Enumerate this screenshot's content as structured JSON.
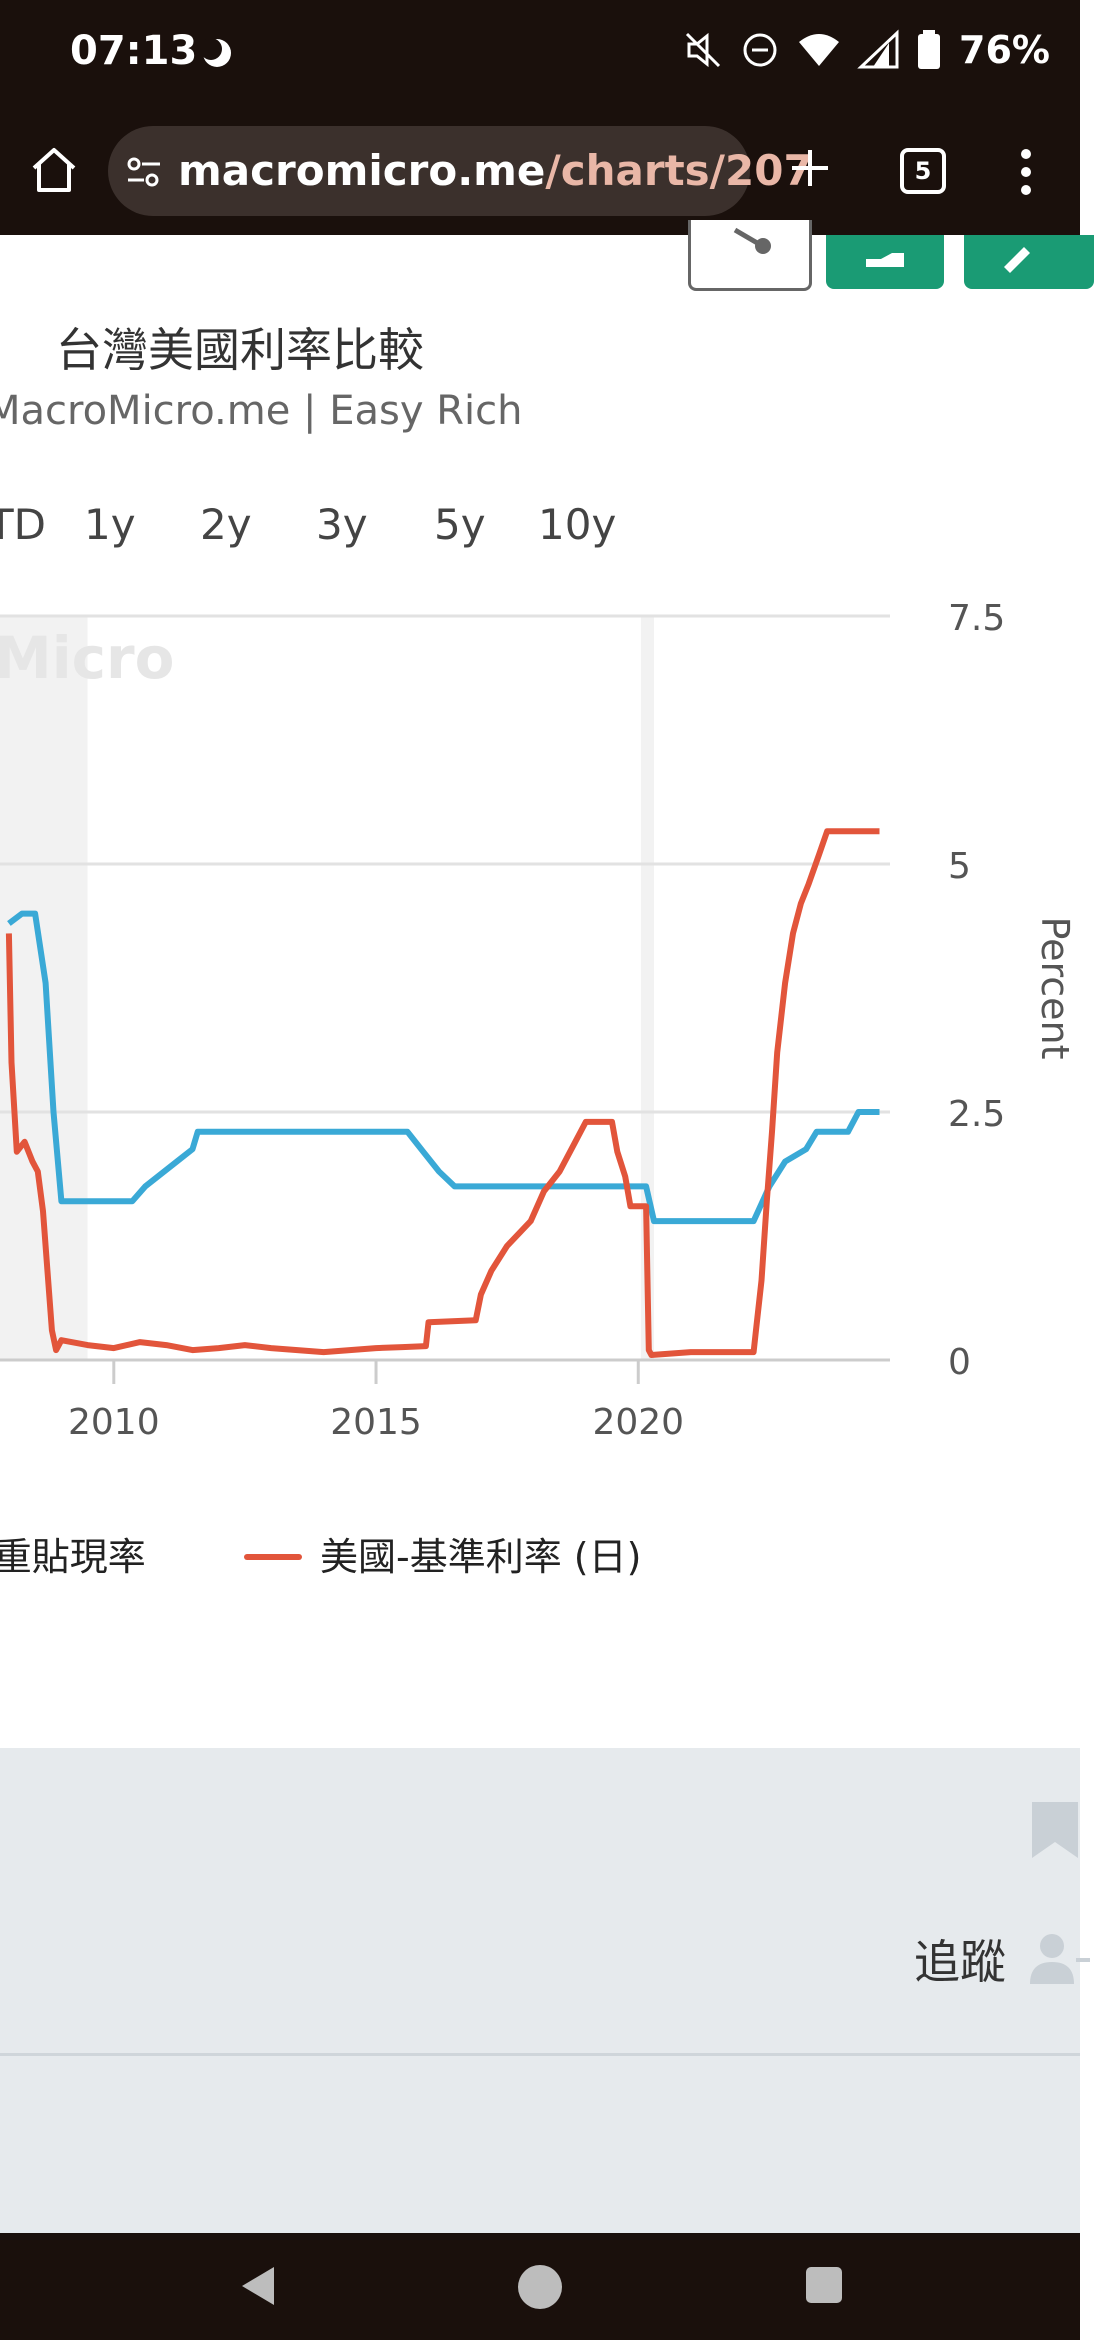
{
  "status_bar": {
    "time": "07:13",
    "battery": "76%",
    "icons": [
      "moon-icon",
      "mute-icon",
      "dnd-icon",
      "wifi-icon",
      "signal-icon",
      "battery-icon"
    ]
  },
  "browser": {
    "url_host": "macromicro.me",
    "url_path": "/charts/207",
    "tab_count": "5",
    "icons": [
      "home-icon",
      "tune-icon",
      "plus-icon",
      "tabs-icon",
      "menu-icon"
    ]
  },
  "toolbar": {
    "icons": [
      "share-icon",
      "download-icon",
      "edit-icon"
    ],
    "accent": "#1a9b74"
  },
  "chart_header": {
    "title": "台灣美國利率比較",
    "source": "MacroMicro.me | Easy Rich"
  },
  "range_buttons": [
    "TD",
    "1y",
    "2y",
    "3y",
    "5y",
    "10y"
  ],
  "chart_data": {
    "type": "line",
    "x_ticks": [
      "2010",
      "2015",
      "2020"
    ],
    "y_ticks": [
      "0",
      "2.5",
      "5",
      "7.5"
    ],
    "ylabel": "Percent",
    "ylim": [
      0,
      7.5
    ],
    "watermark": "Micro",
    "series": [
      {
        "name": "重貼現率",
        "color": "#3aa9d6",
        "points": [
          [
            2008.0,
            4.4
          ],
          [
            2008.25,
            4.5
          ],
          [
            2008.5,
            4.5
          ],
          [
            2008.7,
            3.8
          ],
          [
            2008.85,
            2.5
          ],
          [
            2009.0,
            1.6
          ],
          [
            2009.5,
            1.6
          ],
          [
            2010.35,
            1.6
          ],
          [
            2010.6,
            1.75
          ],
          [
            2010.9,
            1.875
          ],
          [
            2011.2,
            2.0
          ],
          [
            2011.5,
            2.125
          ],
          [
            2011.6,
            2.3
          ],
          [
            2015.6,
            2.3
          ],
          [
            2015.9,
            2.1
          ],
          [
            2016.2,
            1.9
          ],
          [
            2016.5,
            1.75
          ],
          [
            2020.15,
            1.75
          ],
          [
            2020.3,
            1.4
          ],
          [
            2022.2,
            1.4
          ],
          [
            2022.5,
            1.75
          ],
          [
            2022.8,
            2.0
          ],
          [
            2023.2,
            2.125
          ],
          [
            2023.4,
            2.3
          ],
          [
            2024.0,
            2.3
          ],
          [
            2024.2,
            2.5
          ],
          [
            2024.6,
            2.5
          ]
        ]
      },
      {
        "name": "美國-基準利率 (日)",
        "color": "#e2553b",
        "points": [
          [
            2008.0,
            4.3
          ],
          [
            2008.05,
            3.0
          ],
          [
            2008.15,
            2.1
          ],
          [
            2008.3,
            2.2
          ],
          [
            2008.45,
            2.0
          ],
          [
            2008.55,
            1.9
          ],
          [
            2008.65,
            1.5
          ],
          [
            2008.72,
            1.0
          ],
          [
            2008.82,
            0.3
          ],
          [
            2008.9,
            0.1
          ],
          [
            2009.0,
            0.2
          ],
          [
            2009.5,
            0.15
          ],
          [
            2010.0,
            0.12
          ],
          [
            2010.5,
            0.18
          ],
          [
            2011.0,
            0.15
          ],
          [
            2011.5,
            0.1
          ],
          [
            2012.0,
            0.12
          ],
          [
            2012.5,
            0.15
          ],
          [
            2013.0,
            0.12
          ],
          [
            2013.5,
            0.1
          ],
          [
            2014.0,
            0.08
          ],
          [
            2014.5,
            0.1
          ],
          [
            2015.0,
            0.12
          ],
          [
            2015.5,
            0.13
          ],
          [
            2015.95,
            0.14
          ],
          [
            2016.0,
            0.38
          ],
          [
            2016.9,
            0.4
          ],
          [
            2017.0,
            0.66
          ],
          [
            2017.2,
            0.9
          ],
          [
            2017.5,
            1.15
          ],
          [
            2017.95,
            1.4
          ],
          [
            2018.2,
            1.7
          ],
          [
            2018.5,
            1.9
          ],
          [
            2018.8,
            2.2
          ],
          [
            2019.0,
            2.4
          ],
          [
            2019.5,
            2.4
          ],
          [
            2019.6,
            2.1
          ],
          [
            2019.75,
            1.85
          ],
          [
            2019.85,
            1.55
          ],
          [
            2020.15,
            1.55
          ],
          [
            2020.2,
            0.1
          ],
          [
            2020.25,
            0.05
          ],
          [
            2021.0,
            0.08
          ],
          [
            2022.2,
            0.08
          ],
          [
            2022.25,
            0.33
          ],
          [
            2022.35,
            0.8
          ],
          [
            2022.45,
            1.6
          ],
          [
            2022.55,
            2.3
          ],
          [
            2022.65,
            3.1
          ],
          [
            2022.8,
            3.8
          ],
          [
            2022.95,
            4.3
          ],
          [
            2023.1,
            4.6
          ],
          [
            2023.25,
            4.8
          ],
          [
            2023.45,
            5.1
          ],
          [
            2023.6,
            5.33
          ],
          [
            2024.0,
            5.33
          ],
          [
            2024.6,
            5.33
          ]
        ]
      }
    ]
  },
  "legend": {
    "series_a": "-重貼現率",
    "series_b": "美國-基準利率 (日)"
  },
  "follow": {
    "label": "追蹤",
    "icons": [
      "bookmark-icon",
      "add-person-icon"
    ]
  },
  "nav_bar": {
    "icons": [
      "back-icon",
      "home-circle-icon",
      "recents-icon"
    ]
  }
}
